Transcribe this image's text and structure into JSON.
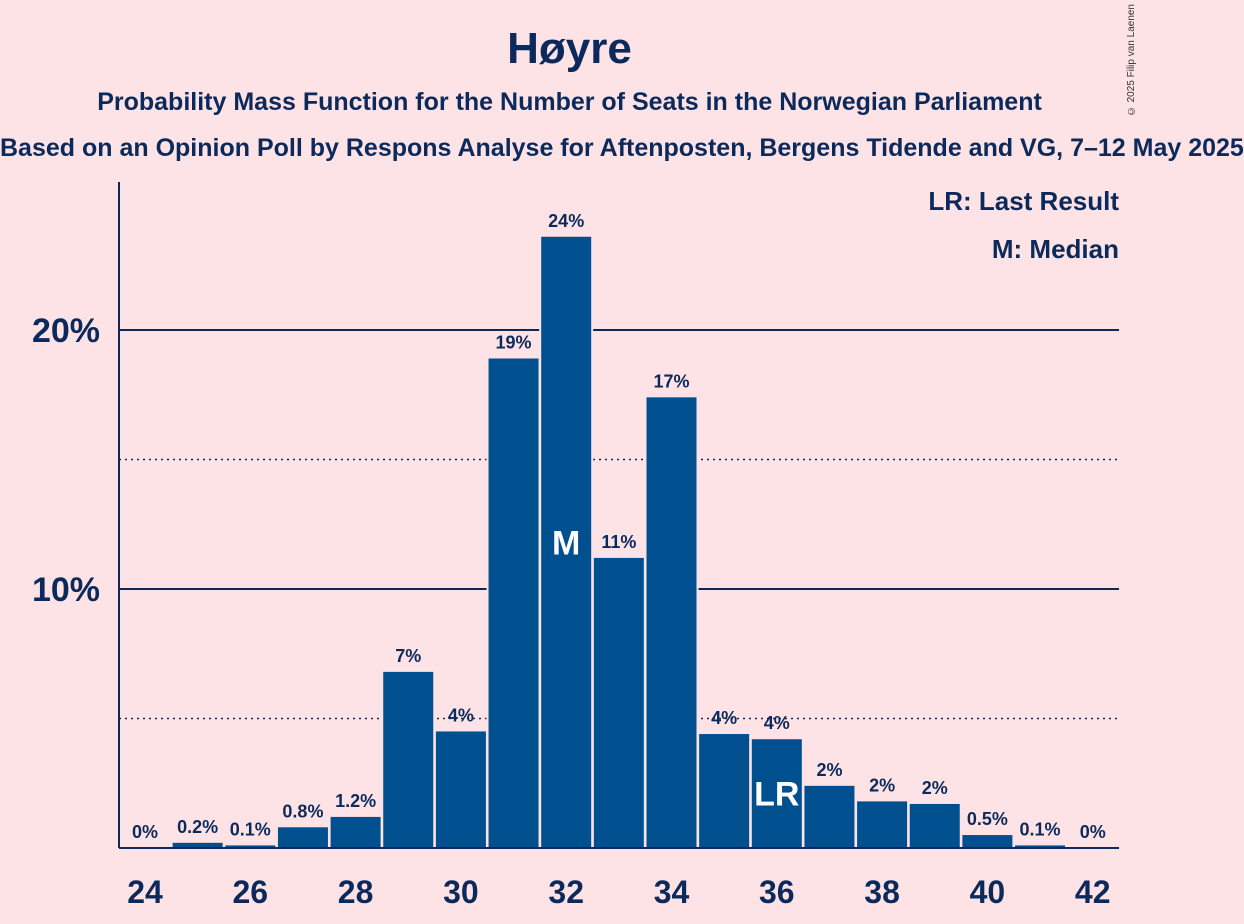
{
  "chart_data": {
    "type": "bar",
    "title": "Høyre",
    "subtitle": "Probability Mass Function for the Number of Seats in the Norwegian Parliament",
    "source": "Based on an Opinion Poll by Respons Analyse for Aftenposten, Bergens Tidende and VG, 7–12 May 2025",
    "copyright": "© 2025 Filip van Laenen",
    "legend": [
      "LR: Last Result",
      "M: Median"
    ],
    "x": [
      24,
      25,
      26,
      27,
      28,
      29,
      30,
      31,
      32,
      33,
      34,
      35,
      36,
      37,
      38,
      39,
      40,
      41,
      42
    ],
    "values": [
      0,
      0.2,
      0.1,
      0.8,
      1.2,
      6.8,
      4.5,
      18.9,
      23.6,
      11.2,
      17.4,
      4.4,
      4.2,
      2.4,
      1.8,
      1.7,
      0.5,
      0.1,
      0
    ],
    "value_labels": [
      "0%",
      "0.2%",
      "0.1%",
      "0.8%",
      "1.2%",
      "7%",
      "4%",
      "19%",
      "24%",
      "11%",
      "17%",
      "4%",
      "4%",
      "2%",
      "2%",
      "2%",
      "0.5%",
      "0.1%",
      "0%"
    ],
    "xticks": [
      24,
      26,
      28,
      30,
      32,
      34,
      36,
      38,
      40,
      42
    ],
    "yticks": [
      {
        "value": 10,
        "label": "10%"
      },
      {
        "value": 20,
        "label": "20%"
      }
    ],
    "dotted_gridlines": [
      5,
      15
    ],
    "ylim": [
      0,
      25.7
    ],
    "median": {
      "x": 32,
      "label": "M"
    },
    "last_result": {
      "x": 36,
      "label": "LR"
    },
    "colors": {
      "bar": "#00508f",
      "text": "#0b2a5b",
      "background": "#fde3e5"
    }
  }
}
